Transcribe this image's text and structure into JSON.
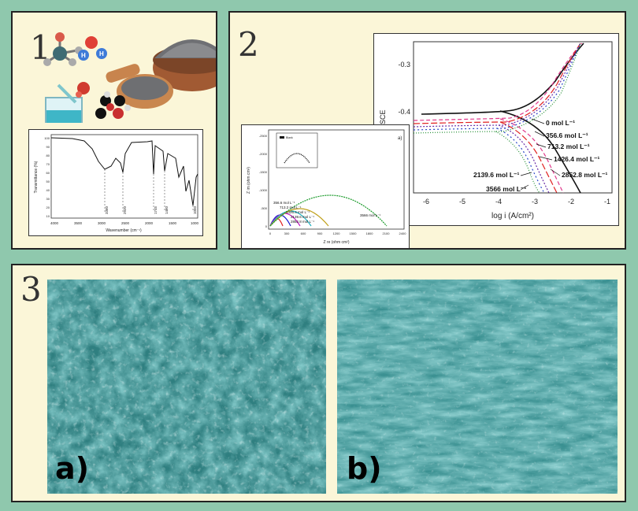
{
  "panels": {
    "p1_number": "1",
    "p2_number": "2",
    "p3_number": "3"
  },
  "ftir": {
    "ylabel": "Transmittance (%)",
    "xlabel": "Wavenumber (cm⁻¹)",
    "xticks": [
      "4000",
      "3500",
      "3000",
      "2500",
      "2000",
      "1500",
      "1000"
    ],
    "yticks": [
      "100",
      "90",
      "80",
      "70",
      "60",
      "50",
      "40",
      "30",
      "20",
      "10"
    ],
    "peaks": [
      "3360",
      "2920",
      "1745",
      "1460",
      "1050"
    ]
  },
  "eis": {
    "panel_letter": "a)",
    "ylabel": "Z im (ohm cm²)",
    "xlabel": "Z re (ohm cm²)",
    "xticks": [
      "0",
      "300",
      "600",
      "900",
      "1200",
      "1500",
      "1800",
      "2100",
      "2400"
    ],
    "yticks": [
      "0",
      "-500",
      "-1000",
      "-1500",
      "-2000",
      "-2500"
    ],
    "inset_legend": "Blank",
    "labels": [
      "356.6 mol L⁻¹",
      "713.2 mol L⁻¹",
      "1426.4 mol L⁻¹",
      "2139.6 mol L⁻¹",
      "2852.8 mol L⁻¹",
      "3566 mol L⁻¹"
    ]
  },
  "tafel": {
    "ylabel": "V SCE",
    "xlabel": "log i (A/cm²)",
    "xticks": [
      "-6",
      "-5",
      "-4",
      "-3",
      "-2",
      "-1"
    ],
    "yticks": [
      "-0.3",
      "-0.4"
    ],
    "labels": [
      "0 mol L⁻¹",
      "356.6 mol L⁻¹",
      "713.2 mol L⁻¹",
      "1426.4 mol L⁻¹",
      "2852.8 mol L⁻¹",
      "2139.6 mol L⁻¹",
      "3566 mol L⁻¹"
    ]
  },
  "sem": {
    "left_label": "a)",
    "right_label": "b)"
  }
}
